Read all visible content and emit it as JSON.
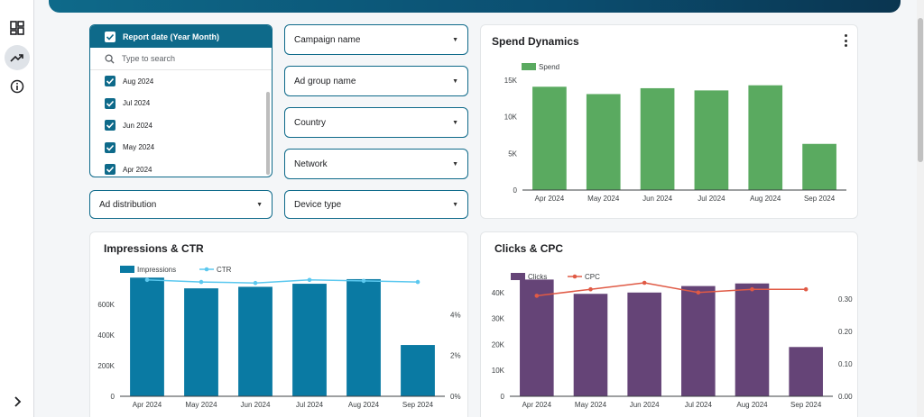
{
  "nav": {
    "items": [
      {
        "icon": "dashboard-icon"
      },
      {
        "icon": "trending-up-icon",
        "active": true
      },
      {
        "icon": "info-icon"
      }
    ],
    "expand_icon": "chevron-right-icon"
  },
  "filters": {
    "report_date": {
      "label": "Report date (Year Month)",
      "search_placeholder": "Type to search",
      "options": [
        "Aug 2024",
        "Jul 2024",
        "Jun 2024",
        "May 2024",
        "Apr 2024"
      ]
    },
    "campaign_name": "Campaign name",
    "ad_group_name": "Ad group name",
    "country": "Country",
    "network": "Network",
    "ad_distribution": "Ad distribution",
    "device_type": "Device type"
  },
  "colors": {
    "spend": "#5aaa60",
    "impressions": "#0a7aa3",
    "ctr": "#5bc8ef",
    "clicks": "#654477",
    "cpc": "#e05a45"
  },
  "chart_data": [
    {
      "type": "bar",
      "title": "Spend Dynamics",
      "categories": [
        "Apr 2024",
        "May 2024",
        "Jun 2024",
        "Jul 2024",
        "Aug 2024",
        "Sep 2024"
      ],
      "series": [
        {
          "name": "Spend",
          "values": [
            14100,
            13100,
            13900,
            13600,
            14300,
            6300
          ]
        }
      ],
      "ylim": [
        0,
        15000
      ],
      "yticks": [
        "0",
        "5K",
        "10K",
        "15K"
      ],
      "legend": "top-left"
    },
    {
      "type": "bar",
      "title": "Impressions & CTR",
      "categories": [
        "Apr 2024",
        "May 2024",
        "Jun 2024",
        "Jul 2024",
        "Aug 2024",
        "Sep 2024"
      ],
      "series": [
        {
          "name": "Impressions",
          "type": "bar",
          "values": [
            775000,
            705000,
            715000,
            735000,
            765000,
            335000
          ]
        },
        {
          "name": "CTR",
          "type": "line",
          "values": [
            5.7,
            5.6,
            5.55,
            5.7,
            5.65,
            5.6
          ]
        }
      ],
      "ylim": [
        0,
        800000
      ],
      "yticks": [
        "0",
        "200K",
        "400K",
        "600K"
      ],
      "y2lim": [
        0,
        6
      ],
      "y2ticks": [
        "0%",
        "2%",
        "4%"
      ],
      "legend": "top-left"
    },
    {
      "type": "bar",
      "title": "Clicks & CPC",
      "categories": [
        "Apr 2024",
        "May 2024",
        "Jun 2024",
        "Jul 2024",
        "Aug 2024",
        "Sep 2024"
      ],
      "series": [
        {
          "name": "Clicks",
          "type": "bar",
          "values": [
            45000,
            39500,
            40000,
            42500,
            43500,
            19000
          ]
        },
        {
          "name": "CPC",
          "type": "line",
          "values": [
            0.31,
            0.33,
            0.35,
            0.32,
            0.33,
            0.33
          ]
        }
      ],
      "ylim": [
        0,
        50000
      ],
      "yticks": [
        "0",
        "10K",
        "20K",
        "30K",
        "40K"
      ],
      "y2lim": [
        0,
        0.4
      ],
      "y2ticks": [
        "0.00",
        "0.10",
        "0.20",
        "0.30"
      ],
      "legend": "top-left"
    }
  ]
}
